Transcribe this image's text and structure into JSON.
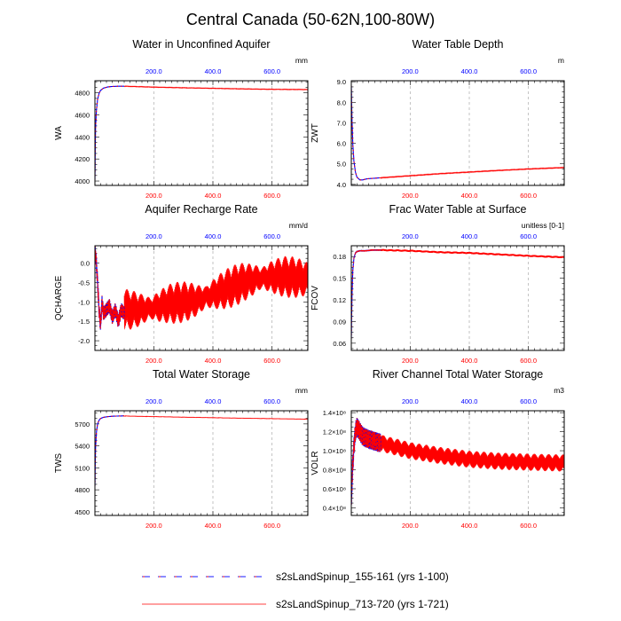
{
  "figure_title": "Central Canada (50-62N,100-80W)",
  "colors": {
    "spinup1": "#0000ff",
    "spinup2": "#ff0000",
    "top_ticks": "#0000ff",
    "bottom_ticks": "#ff0000",
    "grid": "#aaaaaa"
  },
  "legend": [
    {
      "label": "s2sLandSpinup_155-161 (yrs 1-100)",
      "style": "dashed-blue-red"
    },
    {
      "label": "s2sLandSpinup_713-720 (yrs 1-721)",
      "style": "solid-red"
    }
  ],
  "chart_data": [
    {
      "type": "line",
      "title": "Water in Unconfined Aquifer",
      "ylabel": "WA",
      "units": "mm",
      "xlim": [
        1,
        721
      ],
      "ylim": [
        3960,
        4910
      ],
      "yticks": [
        4000,
        4200,
        4400,
        4600,
        4800
      ],
      "ytick_labels": [
        "4000",
        "4200",
        "4400",
        "4600",
        "4800"
      ],
      "xticks": [
        200,
        400,
        600
      ],
      "xtick_labels": [
        "200.0",
        "400.0",
        "600.0"
      ],
      "series": [
        {
          "name": "s2sLandSpinup_155-161 (yrs 1-100)",
          "x": [
            1,
            3,
            6,
            10,
            15,
            20,
            30,
            45,
            60,
            80,
            100
          ],
          "y": [
            4010,
            4470,
            4640,
            4740,
            4795,
            4822,
            4843,
            4854,
            4858,
            4860,
            4860
          ]
        },
        {
          "name": "s2sLandSpinup_713-720 (yrs 1-721)",
          "x": [
            100,
            200,
            300,
            400,
            500,
            600,
            721
          ],
          "y": [
            4860,
            4852,
            4846,
            4841,
            4836,
            4832,
            4830
          ]
        }
      ]
    },
    {
      "type": "line",
      "title": "Water Table Depth",
      "ylabel": "ZWT",
      "units": "m",
      "xlim": [
        1,
        721
      ],
      "ylim": [
        3.95,
        9.05
      ],
      "yticks": [
        4,
        5,
        6,
        7,
        8,
        9
      ],
      "ytick_labels": [
        "4.0",
        "5.0",
        "6.0",
        "7.0",
        "8.0",
        "9.0"
      ],
      "xticks": [
        200,
        400,
        600
      ],
      "xtick_labels": [
        "200.0",
        "400.0",
        "600.0"
      ],
      "series": [
        {
          "name": "s2sLandSpinup_155-161 (yrs 1-100)",
          "x": [
            1,
            3,
            6,
            10,
            15,
            20,
            30,
            40,
            50,
            60,
            80,
            100
          ],
          "y": [
            8.8,
            7.3,
            6.0,
            5.1,
            4.6,
            4.35,
            4.22,
            4.22,
            4.26,
            4.28,
            4.3,
            4.32
          ]
        },
        {
          "name": "s2sLandSpinup_713-720 (yrs 1-721)",
          "x": [
            100,
            200,
            300,
            400,
            500,
            600,
            721
          ],
          "y": [
            4.32,
            4.42,
            4.52,
            4.6,
            4.68,
            4.75,
            4.82
          ]
        }
      ]
    },
    {
      "type": "line",
      "title": "Aquifer Recharge Rate",
      "ylabel": "QCHARGE",
      "units": "mm/d",
      "xlim": [
        1,
        721
      ],
      "ylim": [
        -2.25,
        0.45
      ],
      "yticks": [
        -2.0,
        -1.5,
        -1.0,
        -0.5,
        0.0
      ],
      "ytick_labels": [
        "-2.0",
        "-1.5",
        "-1.0",
        "-0.5",
        "0.0"
      ],
      "xticks": [
        200,
        400,
        600
      ],
      "xtick_labels": [
        "200.0",
        "400.0",
        "600.0"
      ],
      "series": [
        {
          "name": "s2sLandSpinup_155-161 (yrs 1-100)",
          "x": [
            1,
            5,
            10,
            15,
            20,
            25,
            30,
            40,
            50,
            60,
            70,
            80,
            90,
            100
          ],
          "y": [
            0.3,
            0.1,
            -0.5,
            -1.2,
            -1.6,
            -1.0,
            -1.3,
            -1.2,
            -1.1,
            -1.4,
            -1.2,
            -1.5,
            -1.2,
            -1.3
          ]
        },
        {
          "name": "s2sLandSpinup_713-720 (yrs 1-721)",
          "x": [
            100,
            150,
            200,
            250,
            300,
            350,
            400,
            450,
            500,
            550,
            600,
            650,
            721
          ],
          "y": [
            -1.2,
            -1.2,
            -1.15,
            -1.05,
            -1.0,
            -0.95,
            -0.8,
            -0.65,
            -0.5,
            -0.4,
            -0.35,
            -0.35,
            -0.4
          ]
        }
      ]
    },
    {
      "type": "line",
      "title": "Frac Water Table at Surface",
      "ylabel": "FCOV",
      "units": "unitless [0-1]",
      "xlim": [
        1,
        721
      ],
      "ylim": [
        0.05,
        0.195
      ],
      "yticks": [
        0.06,
        0.09,
        0.12,
        0.15,
        0.18
      ],
      "ytick_labels": [
        "0.06",
        "0.09",
        "0.12",
        "0.15",
        "0.18"
      ],
      "xticks": [
        200,
        400,
        600
      ],
      "xtick_labels": [
        "200.0",
        "400.0",
        "600.0"
      ],
      "series": [
        {
          "name": "s2sLandSpinup_155-161 (yrs 1-100)",
          "x": [
            1,
            3,
            6,
            10,
            15,
            20,
            30,
            50,
            70,
            100
          ],
          "y": [
            0.065,
            0.12,
            0.16,
            0.178,
            0.185,
            0.187,
            0.188,
            0.188,
            0.189,
            0.189
          ]
        },
        {
          "name": "s2sLandSpinup_713-720 (yrs 1-721)",
          "x": [
            100,
            200,
            300,
            400,
            500,
            600,
            721
          ],
          "y": [
            0.189,
            0.188,
            0.186,
            0.185,
            0.183,
            0.181,
            0.179
          ]
        }
      ]
    },
    {
      "type": "line",
      "title": "Total Water Storage",
      "ylabel": "TWS",
      "units": "mm",
      "xlim": [
        1,
        721
      ],
      "ylim": [
        4450,
        5880
      ],
      "yticks": [
        4500,
        4800,
        5100,
        5400,
        5700
      ],
      "ytick_labels": [
        "4500",
        "4800",
        "5100",
        "5400",
        "5700"
      ],
      "xticks": [
        200,
        400,
        600
      ],
      "xtick_labels": [
        "200.0",
        "400.0",
        "600.0"
      ],
      "series": [
        {
          "name": "s2sLandSpinup_155-161 (yrs 1-100)",
          "x": [
            1,
            3,
            6,
            10,
            15,
            20,
            30,
            45,
            60,
            80,
            100
          ],
          "y": [
            4850,
            5350,
            5580,
            5700,
            5750,
            5775,
            5790,
            5800,
            5805,
            5808,
            5810
          ]
        },
        {
          "name": "s2sLandSpinup_713-720 (yrs 1-721)",
          "x": [
            100,
            200,
            300,
            400,
            500,
            600,
            721
          ],
          "y": [
            5808,
            5800,
            5792,
            5785,
            5778,
            5772,
            5765
          ]
        }
      ]
    },
    {
      "type": "line",
      "title": "River Channel Total Water Storage",
      "ylabel": "VOLR",
      "units": "m3",
      "xlim": [
        1,
        721
      ],
      "ylim": [
        32000000.0,
        142000000.0
      ],
      "yticks": [
        40000000.0,
        60000000.0,
        80000000.0,
        100000000.0,
        120000000.0,
        140000000.0
      ],
      "ytick_labels": [
        "0.4×10⁸",
        "0.6×10⁸",
        "0.8×10⁸",
        "1.0×10⁸",
        "1.2×10⁸",
        "1.4×10⁸"
      ],
      "xticks": [
        200,
        400,
        600
      ],
      "xtick_labels": [
        "200.0",
        "400.0",
        "600.0"
      ],
      "series": [
        {
          "name": "s2sLandSpinup_155-161 (yrs 1-100)",
          "x": [
            1,
            5,
            10,
            15,
            20,
            30,
            40,
            60,
            80,
            100
          ],
          "y": [
            45000000.0,
            80000000.0,
            105000000.0,
            120000000.0,
            125000000.0,
            120000000.0,
            115000000.0,
            112000000.0,
            110000000.0,
            108000000.0
          ]
        },
        {
          "name": "s2sLandSpinup_713-720 (yrs 1-721)",
          "x": [
            100,
            200,
            300,
            400,
            500,
            600,
            721
          ],
          "y": [
            108000000.0,
            100000000.0,
            95000000.0,
            91000000.0,
            89000000.0,
            88000000.0,
            87000000.0
          ]
        }
      ]
    }
  ]
}
